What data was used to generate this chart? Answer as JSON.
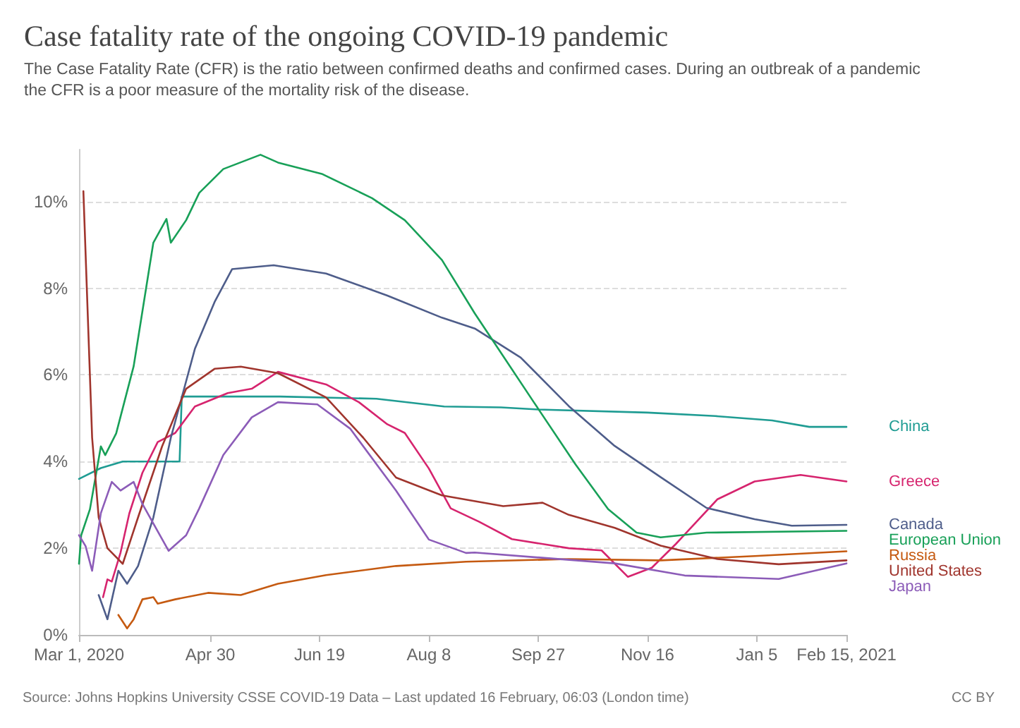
{
  "chart_data": {
    "type": "line",
    "title": "Case fatality rate of the ongoing COVID-19 pandemic",
    "subtitle": "The Case Fatality Rate (CFR) is the ratio between confirmed deaths and confirmed cases. During an outbreak of a pandemic the CFR is a poor measure of the mortality risk of the disease.",
    "annotations": [
      "Source: Johns Hopkins University CSSE COVID-19 Data – Last updated 16 February, 06:03 (London time)",
      "CC BY"
    ],
    "xlim": [
      "2020-03-01",
      "2021-02-15"
    ],
    "xticks": [
      {
        "value": "2020-03-01",
        "label": "Mar 1, 2020"
      },
      {
        "value": "2020-04-30",
        "label": "Apr 30"
      },
      {
        "value": "2020-06-19",
        "label": "Jun 19"
      },
      {
        "value": "2020-08-08",
        "label": "Aug 8"
      },
      {
        "value": "2020-09-27",
        "label": "Sep 27"
      },
      {
        "value": "2020-11-16",
        "label": "Nov 16"
      },
      {
        "value": "2021-01-05",
        "label": "Jan 5"
      },
      {
        "value": "2021-02-15",
        "label": "Feb 15, 2021"
      }
    ],
    "ylim": [
      0,
      11.2
    ],
    "yticks": [
      {
        "value": 0,
        "label": "0%"
      },
      {
        "value": 2,
        "label": "2%"
      },
      {
        "value": 4,
        "label": "4%"
      },
      {
        "value": 6,
        "label": "6%"
      },
      {
        "value": 8,
        "label": "8%"
      },
      {
        "value": 10,
        "label": "10%"
      }
    ],
    "grid": "y",
    "marker": "none",
    "line_style": "solid",
    "series": [
      {
        "name": "China",
        "color": "#1f9c93",
        "x": [
          "2020-03-01",
          "2020-03-11",
          "2020-03-21",
          "2020-04-16",
          "2020-04-17",
          "2020-06-01",
          "2020-07-15",
          "2020-08-15",
          "2020-09-10",
          "2020-09-27",
          "2020-11-16",
          "2020-12-17",
          "2021-01-12",
          "2021-01-29",
          "2021-02-15"
        ],
        "values": [
          3.6,
          3.85,
          4.0,
          4.0,
          5.5,
          5.5,
          5.45,
          5.27,
          5.25,
          5.2,
          5.13,
          5.05,
          4.95,
          4.8,
          4.8
        ]
      },
      {
        "name": "Greece",
        "color": "#d6246e",
        "x": [
          "2020-03-12",
          "2020-03-14",
          "2020-03-16",
          "2020-03-20",
          "2020-03-24",
          "2020-03-30",
          "2020-04-06",
          "2020-04-14",
          "2020-04-23",
          "2020-05-08",
          "2020-05-19",
          "2020-05-31",
          "2020-06-22",
          "2020-07-07",
          "2020-07-20",
          "2020-07-28",
          "2020-08-08",
          "2020-08-18",
          "2020-08-31",
          "2020-09-15",
          "2020-10-11",
          "2020-10-26",
          "2020-11-07",
          "2020-11-18",
          "2020-11-29",
          "2020-12-18",
          "2021-01-04",
          "2021-01-25",
          "2021-02-15"
        ],
        "values": [
          0.87,
          1.28,
          1.23,
          1.9,
          2.8,
          3.74,
          4.45,
          4.66,
          5.27,
          5.58,
          5.68,
          6.07,
          5.78,
          5.37,
          4.86,
          4.66,
          3.84,
          2.92,
          2.61,
          2.21,
          2.0,
          1.95,
          1.34,
          1.55,
          2.1,
          3.13,
          3.54,
          3.69,
          3.54
        ]
      },
      {
        "name": "Canada",
        "color": "#4e5d8a",
        "x": [
          "2020-03-10",
          "2020-03-14",
          "2020-03-19",
          "2020-03-23",
          "2020-03-28",
          "2020-04-04",
          "2020-04-12",
          "2020-04-23",
          "2020-05-02",
          "2020-05-10",
          "2020-05-29",
          "2020-06-22",
          "2020-07-20",
          "2020-08-14",
          "2020-08-29",
          "2020-09-19",
          "2020-10-11",
          "2020-11-01",
          "2020-11-22",
          "2020-12-13",
          "2021-01-04",
          "2021-01-21",
          "2021-02-15"
        ],
        "values": [
          0.92,
          0.36,
          1.48,
          1.18,
          1.59,
          2.71,
          4.55,
          6.6,
          7.68,
          8.44,
          8.53,
          8.34,
          7.83,
          7.32,
          7.07,
          6.4,
          5.28,
          4.36,
          3.64,
          2.93,
          2.67,
          2.52,
          2.54
        ]
      },
      {
        "name": "European Union",
        "color": "#18a058",
        "x": [
          "2020-03-01",
          "2020-03-02",
          "2020-03-06",
          "2020-03-11",
          "2020-03-13",
          "2020-03-18",
          "2020-03-26",
          "2020-04-04",
          "2020-04-10",
          "2020-04-12",
          "2020-04-19",
          "2020-04-25",
          "2020-05-06",
          "2020-05-23",
          "2020-05-31",
          "2020-06-20",
          "2020-07-13",
          "2020-07-28",
          "2020-08-14",
          "2020-08-29",
          "2020-09-25",
          "2020-10-14",
          "2020-10-29",
          "2020-11-11",
          "2020-11-22",
          "2020-12-13",
          "2021-02-15"
        ],
        "values": [
          1.64,
          2.3,
          2.9,
          4.35,
          4.15,
          4.65,
          6.2,
          9.05,
          9.6,
          9.05,
          9.57,
          10.2,
          10.75,
          11.08,
          10.9,
          10.64,
          10.08,
          9.57,
          8.65,
          7.42,
          5.37,
          3.94,
          2.9,
          2.36,
          2.25,
          2.36,
          2.4
        ]
      },
      {
        "name": "Russia",
        "color": "#c55a11",
        "x": [
          "2020-03-19",
          "2020-03-23",
          "2020-03-26",
          "2020-03-30",
          "2020-04-04",
          "2020-04-06",
          "2020-04-14",
          "2020-04-29",
          "2020-05-14",
          "2020-05-31",
          "2020-06-22",
          "2020-07-24",
          "2020-08-25",
          "2020-10-11",
          "2020-11-22",
          "2021-01-04",
          "2021-02-15"
        ],
        "values": [
          0.46,
          0.15,
          0.36,
          0.82,
          0.87,
          0.72,
          0.82,
          0.97,
          0.92,
          1.18,
          1.38,
          1.59,
          1.69,
          1.75,
          1.72,
          1.82,
          1.93
        ]
      },
      {
        "name": "United States",
        "color": "#a0352d",
        "x": [
          "2020-03-03",
          "2020-03-07",
          "2020-03-10",
          "2020-03-14",
          "2020-03-21",
          "2020-03-28",
          "2020-04-08",
          "2020-04-19",
          "2020-05-02",
          "2020-05-14",
          "2020-05-31",
          "2020-06-22",
          "2020-07-09",
          "2020-07-24",
          "2020-08-14",
          "2020-09-11",
          "2020-09-29",
          "2020-10-11",
          "2020-11-01",
          "2020-11-22",
          "2020-12-18",
          "2021-01-15",
          "2021-02-15"
        ],
        "values": [
          10.24,
          4.55,
          2.71,
          2.0,
          1.64,
          2.71,
          4.35,
          5.68,
          6.14,
          6.19,
          6.04,
          5.48,
          4.55,
          3.63,
          3.22,
          2.97,
          3.05,
          2.77,
          2.47,
          2.06,
          1.75,
          1.63,
          1.72
        ]
      },
      {
        "name": "Japan",
        "color": "#8c5cb8",
        "x": [
          "2020-03-01",
          "2020-03-04",
          "2020-03-07",
          "2020-03-11",
          "2020-03-16",
          "2020-03-20",
          "2020-03-26",
          "2020-03-30",
          "2020-04-11",
          "2020-04-19",
          "2020-04-25",
          "2020-05-06",
          "2020-05-19",
          "2020-05-31",
          "2020-06-18",
          "2020-07-03",
          "2020-07-24",
          "2020-08-08",
          "2020-08-25",
          "2020-08-29",
          "2020-11-01",
          "2020-12-03",
          "2021-01-15",
          "2021-02-15"
        ],
        "values": [
          2.3,
          2.05,
          1.48,
          2.81,
          3.53,
          3.33,
          3.53,
          3.02,
          1.94,
          2.3,
          2.92,
          4.15,
          5.02,
          5.37,
          5.32,
          4.76,
          3.33,
          2.2,
          1.89,
          1.9,
          1.65,
          1.37,
          1.29,
          1.65
        ]
      }
    ]
  }
}
